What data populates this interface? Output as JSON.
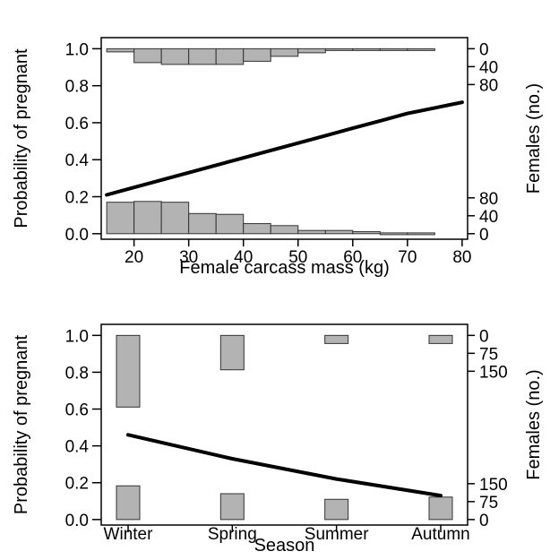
{
  "chart_data": [
    {
      "type": "line",
      "xlabel": "Female carcass mass (kg)",
      "ylabel": "Probability of pregnant",
      "y2label": "Females (no.)",
      "xlim": [
        14,
        81
      ],
      "ylim": [
        -0.03,
        1.06
      ],
      "x_ticks": [
        20,
        30,
        40,
        50,
        60,
        70,
        80
      ],
      "y_ticks": [
        0.0,
        0.2,
        0.4,
        0.6,
        0.8,
        1.0
      ],
      "right_ticks_top": [
        0,
        40,
        80
      ],
      "right_ticks_bottom": [
        80,
        40,
        0
      ],
      "series": [
        {
          "x": [
            15,
            20,
            25,
            30,
            35,
            40,
            45,
            50,
            55,
            60,
            65,
            70,
            75,
            80
          ],
          "values": [
            0.21,
            0.25,
            0.29,
            0.33,
            0.37,
            0.41,
            0.45,
            0.49,
            0.53,
            0.57,
            0.61,
            0.65,
            0.68,
            0.71
          ]
        }
      ],
      "histogram_bins": [
        15,
        20,
        25,
        30,
        35,
        40,
        45,
        50,
        55,
        60,
        65,
        70,
        75
      ],
      "pregnant_counts": [
        7,
        31,
        35,
        35,
        35,
        28,
        17,
        9,
        3,
        2,
        1,
        0
      ],
      "not_pregnant_counts": [
        78,
        80,
        78,
        50,
        48,
        25,
        20,
        8,
        8,
        5,
        2,
        2
      ],
      "grid": false,
      "legend": "none"
    },
    {
      "type": "line",
      "xlabel": "Season",
      "ylabel": "Probability of pregnant",
      "y2label": "Females (no.)",
      "categories": [
        "Winter",
        "Spring",
        "Summer",
        "Autumn"
      ],
      "ylim": [
        -0.03,
        1.06
      ],
      "y_ticks": [
        0.0,
        0.2,
        0.4,
        0.6,
        0.8,
        1.0
      ],
      "right_ticks_top": [
        0,
        75,
        150
      ],
      "right_ticks_bottom": [
        150,
        75,
        0
      ],
      "series": [
        {
          "values": [
            0.46,
            0.33,
            0.22,
            0.13
          ]
        }
      ],
      "pregnant_counts": [
        150,
        72,
        17,
        17
      ],
      "not_pregnant_counts": [
        150,
        115,
        90,
        100
      ],
      "grid": false,
      "legend": "none"
    }
  ]
}
